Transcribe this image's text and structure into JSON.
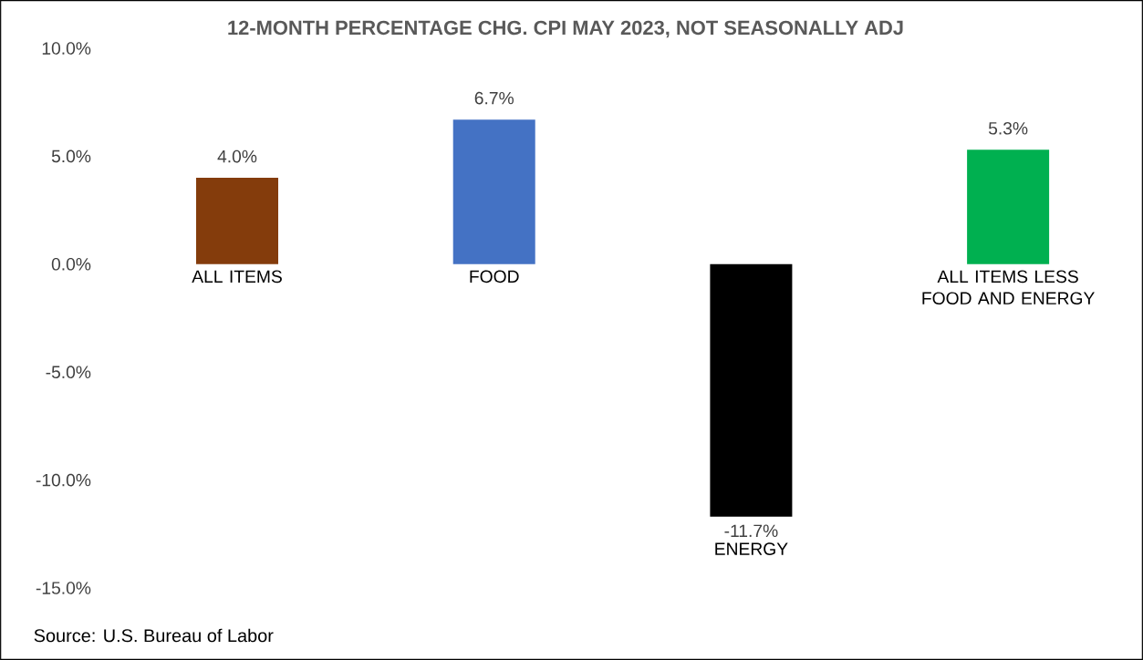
{
  "chart_data": {
    "type": "bar",
    "title": "12-MONTH PERCENTAGE CHG. CPI MAY 2023, NOT SEASONALLY ADJ",
    "categories": [
      "ALL ITEMS",
      "FOOD",
      "ENERGY",
      "ALL ITEMS LESS FOOD AND ENERGY"
    ],
    "values": [
      4.0,
      6.7,
      -11.7,
      5.3
    ],
    "colors": [
      "#843c0c",
      "#4472c4",
      "#000000",
      "#00b050"
    ],
    "value_labels": [
      "4.0%",
      "6.7%",
      "-11.7%",
      "5.3%"
    ],
    "ylim": [
      -15,
      10
    ],
    "yticks": [
      {
        "value": -15,
        "label": "-15.0%"
      },
      {
        "value": -10,
        "label": "-10.0%"
      },
      {
        "value": -5,
        "label": "-5.0%"
      },
      {
        "value": 0,
        "label": "0.0%"
      },
      {
        "value": 5,
        "label": "5.0%"
      },
      {
        "value": 10,
        "label": "10.0%"
      }
    ],
    "annotations": [
      "Source: U.S. Bureau of Labor"
    ]
  }
}
